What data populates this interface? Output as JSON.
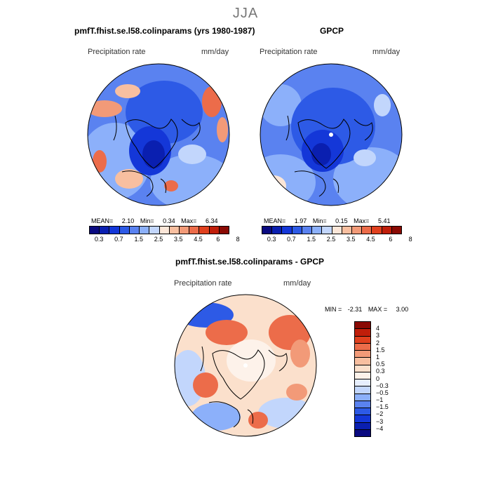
{
  "season": "JJA",
  "panels": {
    "model": {
      "title": "pmfT.fhist.se.l58.colinparams (yrs 1980-1987)",
      "variable": "Precipitation rate",
      "units": "mm/day",
      "mean_label": "MEAN=",
      "mean": "2.10",
      "min_label": "Min=",
      "min": "0.34",
      "max_label": "Max=",
      "max": "6.34"
    },
    "obs": {
      "title": "GPCP",
      "variable": "Precipitation rate",
      "units": "mm/day",
      "mean_label": "MEAN=",
      "mean": "1.97",
      "min_label": "Min=",
      "min": "0.15",
      "max_label": "Max=",
      "max": "5.41"
    },
    "diff": {
      "title": "pmfT.fhist.se.l58.colinparams - GPCP",
      "variable": "Precipitation rate",
      "units": "mm/day",
      "min_label": "MIN =",
      "min": "-2.31",
      "max_label": "MAX =",
      "max": "3.00"
    }
  },
  "colorbar_abs": {
    "ticks": [
      "0.3",
      "0.7",
      "1.5",
      "2.5",
      "3.5",
      "4.5",
      "6",
      "8"
    ],
    "colors": [
      "#0a0a80",
      "#0a1fb0",
      "#1437d8",
      "#2d5ae6",
      "#5a82f0",
      "#8cb0fa",
      "#c2d6fc",
      "#fbe6d8",
      "#f8bfa0",
      "#f29a78",
      "#ec6c4a",
      "#e0401e",
      "#c01e0a",
      "#8a0a04"
    ]
  },
  "colorbar_diff": {
    "ticks": [
      "4",
      "3",
      "2",
      "1.5",
      "1",
      "0.5",
      "0.3",
      "0",
      "−0.3",
      "−0.5",
      "−1",
      "−1.5",
      "−2",
      "−3",
      "−4"
    ],
    "colors": [
      "#8a0a04",
      "#c01e0a",
      "#e0401e",
      "#ec6c4a",
      "#f29a78",
      "#f8bfa0",
      "#fbe0cc",
      "#fdf2ea",
      "#e6eefd",
      "#c2d6fc",
      "#8cb0fa",
      "#5a82f0",
      "#2d5ae6",
      "#1437d8",
      "#0a1fb0",
      "#0a0a80"
    ]
  }
}
